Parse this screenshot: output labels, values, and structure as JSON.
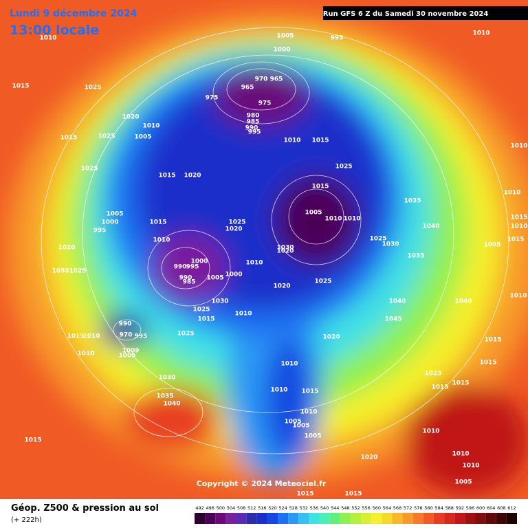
{
  "header": {
    "date": "Lundi 9 décembre 2024",
    "time": "13:00 locale",
    "run": "Run GFS 6 Z du Samedi 30 novembre 2024"
  },
  "map": {
    "copyright": "Copyright © 2024 Meteociel.fr",
    "isobar_labels": [
      1005,
      995,
      1010,
      1010,
      1000,
      1015,
      1025,
      970,
      965,
      965,
      975,
      975,
      980,
      985,
      990,
      995,
      1020,
      1010,
      1005,
      1015,
      1025,
      1010,
      1015,
      1010,
      1025,
      1015,
      1020,
      1025,
      1015,
      1035,
      1010,
      1005,
      1000,
      995,
      1015,
      1025,
      1020,
      1005,
      1010,
      1010,
      1040,
      1015,
      1010,
      1020,
      1010,
      1025,
      1030,
      1005,
      1015,
      1030,
      1020,
      1035,
      1000,
      990,
      995,
      1010,
      1030,
      1025,
      990,
      985,
      1005,
      1000,
      1020,
      1025,
      1010,
      1030,
      1040,
      1040,
      1025,
      1015,
      1010,
      1045,
      990,
      970,
      1015,
      1010,
      995,
      1025,
      1020,
      1015,
      1010,
      1009,
      1005,
      1010,
      1015,
      1025,
      1030,
      1015,
      1015,
      1010,
      1015,
      1035,
      1040,
      1010,
      1005,
      1005,
      1005,
      1015,
      1010,
      1020,
      1010,
      1010,
      1005,
      1015,
      1015
    ]
  },
  "footer": {
    "title": "Géop. Z500 & pression au sol",
    "lead": "(+ 222h)",
    "scale": {
      "values": [
        492,
        496,
        500,
        504,
        508,
        512,
        516,
        520,
        524,
        528,
        532,
        536,
        540,
        544,
        548,
        552,
        556,
        560,
        564,
        568,
        572,
        576,
        580,
        584,
        588,
        592,
        596,
        600,
        604,
        608,
        612
      ],
      "colors": [
        "#2a0033",
        "#4b0058",
        "#6a0a7a",
        "#7b1f9c",
        "#5a2bb0",
        "#2c2ca8",
        "#1a2fc9",
        "#1448e0",
        "#1f6ff2",
        "#2a98f5",
        "#35c0f0",
        "#3fe0e6",
        "#48f0b8",
        "#5ef07a",
        "#8ef050",
        "#b4f03c",
        "#d8f030",
        "#f5f02a",
        "#f8d828",
        "#f8b82a",
        "#f89a2a",
        "#f87a28",
        "#f05a24",
        "#e83c20",
        "#d8281c",
        "#c01818",
        "#a01010",
        "#800c0c",
        "#600808",
        "#400404",
        "#200000"
      ]
    }
  }
}
